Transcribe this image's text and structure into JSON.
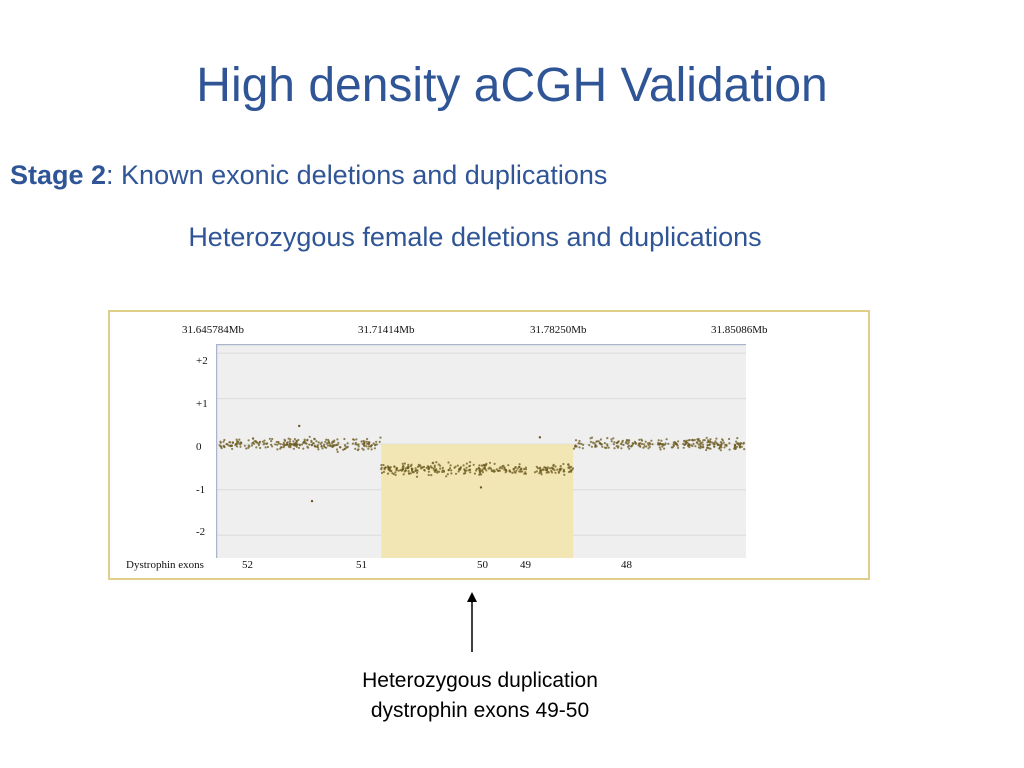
{
  "slide": {
    "title": "High density aCGH Validation",
    "stage_label": "Stage 2",
    "stage_text": ": Known exonic deletions and duplications",
    "subheading": "Heterozygous female deletions and duplications"
  },
  "figure": {
    "coordinates": [
      "31.645784Mb",
      "31.71414Mb",
      "31.78250Mb",
      "31.85086Mb"
    ],
    "y_labels": [
      "+2",
      "+1",
      "0",
      "-1",
      "-2"
    ],
    "exon_track_label": "Dystrophin exons",
    "exons": [
      "52",
      "51",
      "50",
      "49",
      "48"
    ],
    "highlight_color": "#f2e6b5",
    "point_color": "#6b5a1e"
  },
  "chart_data": {
    "type": "scatter",
    "title": "",
    "xlabel": "",
    "ylabel": "",
    "x_ticks": [
      "31.645784Mb",
      "31.71414Mb",
      "31.78250Mb",
      "31.85086Mb"
    ],
    "ylim": [
      -2.5,
      2.2
    ],
    "y_ticks": [
      "+2",
      "+1",
      "0",
      "-1",
      "-2"
    ],
    "x_units": "Mb",
    "segments": [
      {
        "x_start": 31.645784,
        "x_end": 31.709,
        "y_mean": 0.0
      },
      {
        "x_start": 31.709,
        "x_end": 31.784,
        "y_mean": -0.55
      },
      {
        "x_start": 31.784,
        "x_end": 31.851,
        "y_mean": 0.0
      }
    ],
    "outliers": [
      {
        "x": 31.677,
        "y": 0.4
      },
      {
        "x": 31.682,
        "y": -1.25
      },
      {
        "x": 31.771,
        "y": 0.15
      },
      {
        "x": 31.748,
        "y": -0.95
      }
    ],
    "highlight_region": {
      "x_start": 31.709,
      "x_end": 31.784
    }
  },
  "caption": {
    "line1": "Heterozygous duplication",
    "line2": "dystrophin exons 49-50"
  }
}
